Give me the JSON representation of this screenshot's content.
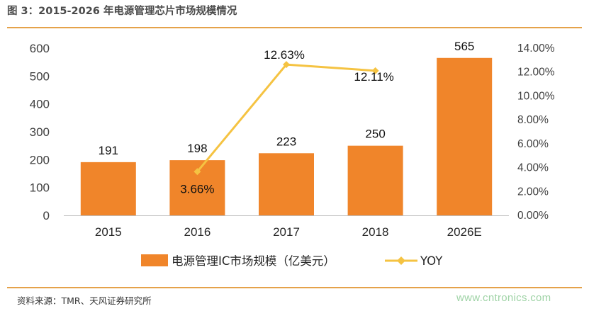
{
  "header": {
    "title": "图 3：2015-2026 年电源管理芯片市场规模情况",
    "source": "资料来源：TMR、天风证券研究所",
    "watermark": "www.cntronics.com"
  },
  "colors": {
    "bar": "#f0852a",
    "line": "#f5c342",
    "accent_line": "#e5a24a"
  },
  "chart_data": {
    "type": "bar",
    "title": "图 3：2015-2026 年电源管理芯片市场规模情况",
    "categories": [
      "2015",
      "2016",
      "2017",
      "2018",
      "2026E"
    ],
    "series": [
      {
        "name": "电源管理IC市场规模（亿美元）",
        "type": "bar",
        "axis": "left",
        "values": [
          191,
          198,
          223,
          250,
          565
        ],
        "data_labels": [
          "191",
          "198",
          "223",
          "250",
          "565"
        ]
      },
      {
        "name": "YOY",
        "type": "line",
        "axis": "right",
        "values": [
          null,
          3.66,
          12.63,
          12.11,
          null
        ],
        "data_labels": [
          null,
          "3.66%",
          "12.63%",
          "12.11%",
          null
        ]
      }
    ],
    "ylim": [
      0,
      600
    ],
    "y_ticks": [
      "0",
      "100",
      "200",
      "300",
      "400",
      "500",
      "600"
    ],
    "y2lim": [
      0,
      14
    ],
    "y2_ticks": [
      "0.00%",
      "2.00%",
      "4.00%",
      "6.00%",
      "8.00%",
      "10.00%",
      "12.00%",
      "14.00%"
    ],
    "grid": false,
    "legend": "bottom"
  }
}
